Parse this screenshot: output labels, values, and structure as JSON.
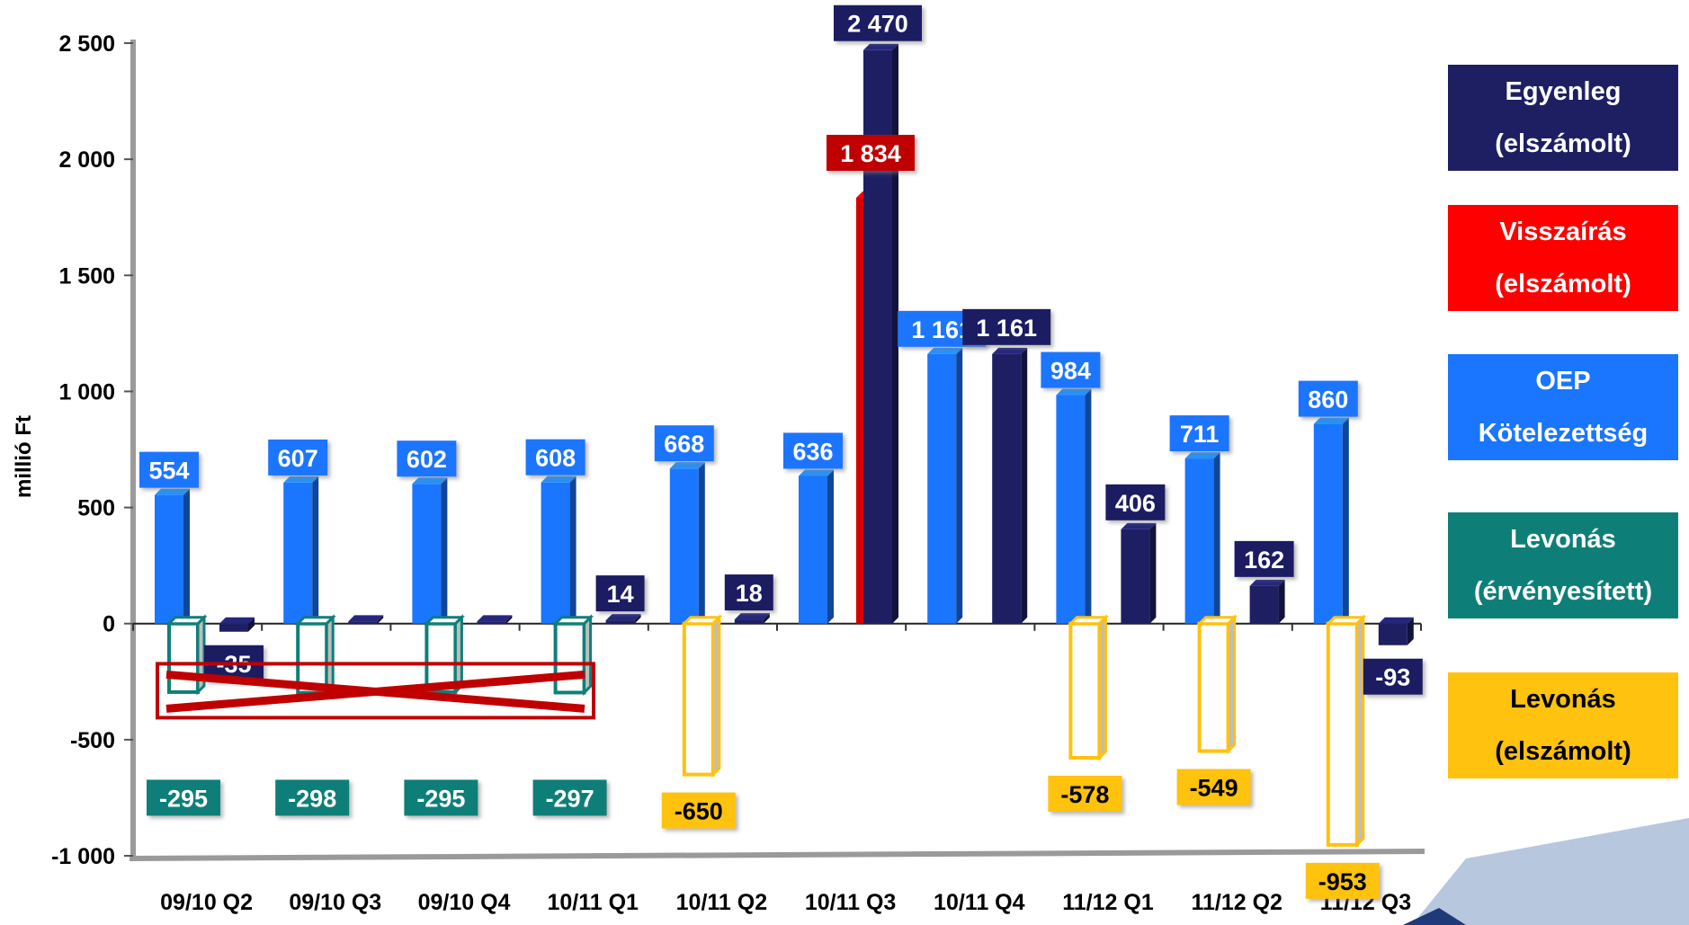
{
  "chart_data": {
    "type": "bar",
    "ylabel": "millió Ft",
    "ylim": [
      -1000,
      2500
    ],
    "yticks": [
      -1000,
      -500,
      0,
      500,
      1000,
      1500,
      2000,
      2500
    ],
    "ytick_labels": [
      "-1 000",
      "-500",
      "0",
      "500",
      "1 000",
      "1 500",
      "2 000",
      "2 500"
    ],
    "categories": [
      "09/10 Q2",
      "09/10 Q3",
      "09/10 Q4",
      "10/11 Q1",
      "10/11 Q2",
      "10/11 Q3",
      "10/11 Q4",
      "11/12 Q1",
      "11/12 Q2",
      "11/12 Q3"
    ],
    "series": [
      {
        "name": "OEP Kötelezettség",
        "color": "#1a75ff",
        "values": [
          554,
          607,
          602,
          608,
          668,
          636,
          1161,
          984,
          711,
          860
        ],
        "labels": [
          "554",
          "607",
          "602",
          "608",
          "668",
          "636",
          "1 161",
          "984",
          "711",
          "860"
        ]
      },
      {
        "name": "Levonás (érvényesített)",
        "color": "#0e7f78",
        "values": [
          -295,
          -298,
          -295,
          -297,
          null,
          null,
          null,
          null,
          null,
          null
        ],
        "labels": [
          "-295",
          "-298",
          "-295",
          "-297",
          null,
          null,
          null,
          null,
          null,
          null
        ]
      },
      {
        "name": "Levonás (elszámolt)",
        "color": "#ffc20e",
        "values": [
          null,
          null,
          null,
          null,
          -650,
          null,
          null,
          -578,
          -549,
          -953
        ],
        "labels": [
          null,
          null,
          null,
          null,
          "-650",
          null,
          null,
          "-578",
          "-549",
          "-953"
        ]
      },
      {
        "name": "Visszaírás (elszámolt)",
        "color": "#d40000",
        "values": [
          null,
          null,
          null,
          null,
          null,
          1834,
          null,
          null,
          null,
          null
        ],
        "labels": [
          null,
          null,
          null,
          null,
          null,
          "1 834",
          null,
          null,
          null,
          null
        ]
      },
      {
        "name": "Egyenleg (elszámolt)",
        "color": "#1e1f63",
        "values": [
          -35,
          9,
          9,
          14,
          18,
          2470,
          1161,
          406,
          162,
          -93
        ],
        "labels": [
          "-35",
          null,
          null,
          "14",
          "18",
          "2 470",
          "1 161",
          "406",
          "162",
          "-93"
        ]
      }
    ],
    "legend": {
      "position": "right",
      "items": [
        {
          "line1": "Egyenleg",
          "line2": "(elszámolt)",
          "color": "#1e1f63",
          "text_color": "#ffffff"
        },
        {
          "line1": "Visszaírás",
          "line2": "(elszámolt)",
          "color": "#ff0000",
          "text_color": "#ffffff"
        },
        {
          "line1": "OEP",
          "line2": "Kötelezettség",
          "color": "#1a75ff",
          "text_color": "#ffffff"
        },
        {
          "line1": "Levonás",
          "line2": "(érvényesített)",
          "color": "#0e7f78",
          "text_color": "#ffffff"
        },
        {
          "line1": "Levonás",
          "line2": "(elszámolt)",
          "color": "#ffc20e",
          "text_color": "#000000"
        }
      ]
    },
    "annotation": "crossed-out box marking the -295/-298/-295/-297 deductions"
  }
}
